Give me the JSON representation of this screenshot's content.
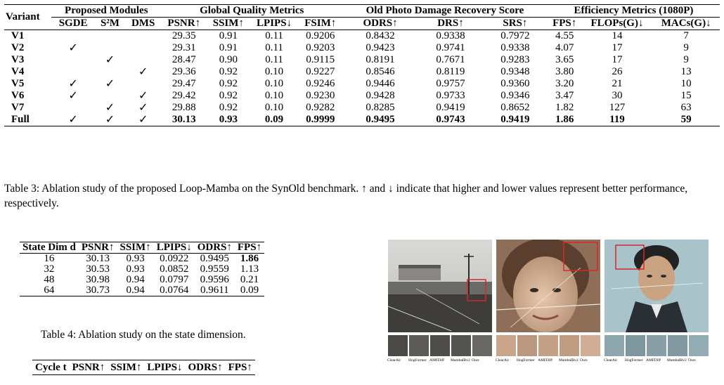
{
  "table3": {
    "h_variant": "Variant",
    "h_modules": "Proposed Modules",
    "h_global": "Global Quality Metrics",
    "h_recovery": "Old Photo Damage Recovery Score",
    "h_eff": "Efficiency Metrics (1080P)",
    "cols": [
      "SGDE",
      "S²M",
      "DMS",
      "PSNR↑",
      "SSIM↑",
      "LPIPS↓",
      "FSIM↑",
      "ODRS↑",
      "DRS↑",
      "SRS↑",
      "FPS↑",
      "FLOPs(G)↓",
      "MACs(G)↓"
    ],
    "rows": [
      {
        "name": "V1",
        "m": [
          "",
          "",
          ""
        ],
        "v": [
          "29.35",
          "0.91",
          "0.11",
          "0.9206",
          "0.8432",
          "0.9338",
          "0.7972",
          "4.55",
          "14",
          "7"
        ]
      },
      {
        "name": "V2",
        "m": [
          "✓",
          "",
          ""
        ],
        "v": [
          "29.31",
          "0.91",
          "0.11",
          "0.9203",
          "0.9423",
          "0.9741",
          "0.9338",
          "4.07",
          "17",
          "9"
        ]
      },
      {
        "name": "V3",
        "m": [
          "",
          "✓",
          ""
        ],
        "v": [
          "28.47",
          "0.90",
          "0.11",
          "0.9115",
          "0.8191",
          "0.7671",
          "0.9283",
          "3.65",
          "17",
          "9"
        ]
      },
      {
        "name": "V4",
        "m": [
          "",
          "",
          "✓"
        ],
        "v": [
          "29.36",
          "0.92",
          "0.10",
          "0.9227",
          "0.8546",
          "0.8119",
          "0.9348",
          "3.80",
          "26",
          "13"
        ]
      },
      {
        "name": "V5",
        "m": [
          "✓",
          "✓",
          ""
        ],
        "v": [
          "29.47",
          "0.92",
          "0.10",
          "0.9246",
          "0.9446",
          "0.9757",
          "0.9360",
          "3.20",
          "21",
          "10"
        ]
      },
      {
        "name": "V6",
        "m": [
          "✓",
          "",
          "✓"
        ],
        "v": [
          "29.42",
          "0.92",
          "0.10",
          "0.9230",
          "0.9428",
          "0.9733",
          "0.9346",
          "3.47",
          "30",
          "15"
        ]
      },
      {
        "name": "V7",
        "m": [
          "",
          "✓",
          "✓"
        ],
        "v": [
          "29.88",
          "0.92",
          "0.10",
          "0.9282",
          "0.8285",
          "0.9419",
          "0.8652",
          "1.82",
          "127",
          "63"
        ]
      },
      {
        "name": "Full",
        "m": [
          "✓",
          "✓",
          "✓"
        ],
        "v": [
          "30.13",
          "0.93",
          "0.09",
          "0.9999",
          "0.9495",
          "0.9743",
          "0.9419",
          "1.86",
          "119",
          "59"
        ]
      }
    ],
    "caption": "Table 3: Ablation study of the proposed Loop-Mamba on the SynOld benchmark. ↑ and ↓ indicate that higher and lower values represent better performance, respectively."
  },
  "table4": {
    "cols": [
      "State Dim d",
      "PSNR↑",
      "SSIM↑",
      "LPIPS↓",
      "ODRS↑",
      "FPS↑"
    ],
    "rows": [
      [
        "16",
        "30.13",
        "0.93",
        "0.0922",
        "0.9495",
        "1.86"
      ],
      [
        "32",
        "30.53",
        "0.93",
        "0.0852",
        "0.9559",
        "1.13"
      ],
      [
        "48",
        "30.98",
        "0.94",
        "0.0797",
        "0.9596",
        "0.21"
      ],
      [
        "64",
        "30.73",
        "0.94",
        "0.0764",
        "0.9611",
        "0.09"
      ]
    ],
    "caption": "Table 4: Ablation study on the state dimension."
  },
  "table5": {
    "cols": [
      "Cycle t",
      "PSNR↑",
      "SSIM↑",
      "LPIPS↓",
      "ODRS↑",
      "FPS↑"
    ]
  },
  "figure": {
    "method_labels": [
      "ClearAir",
      "HogFormer",
      "AMFDiff",
      "MambaIRv2",
      "Ours"
    ]
  }
}
